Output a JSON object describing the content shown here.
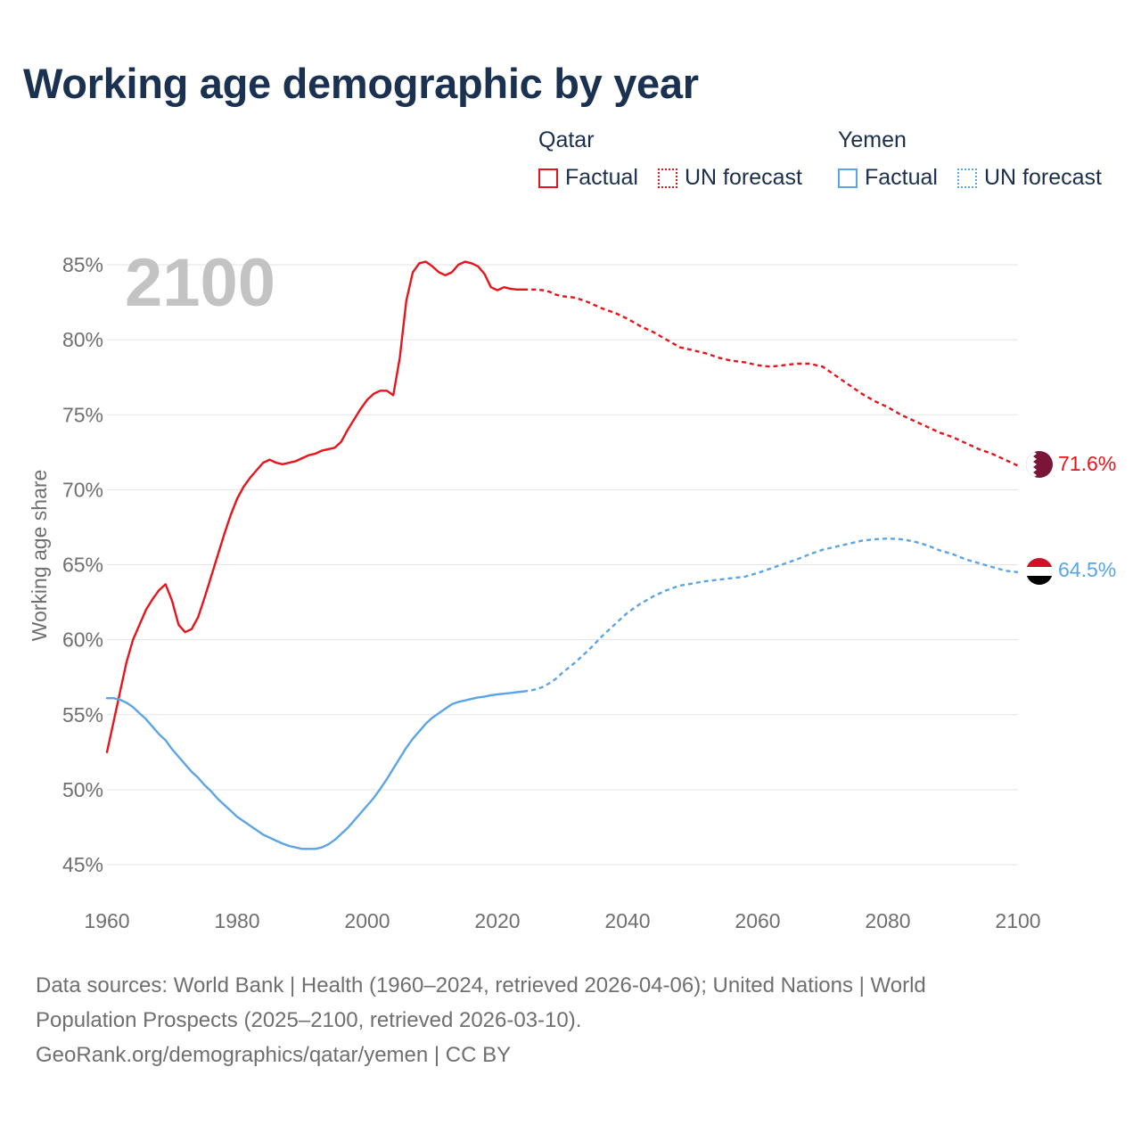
{
  "title": "Working age demographic by year",
  "legend": {
    "groups": [
      {
        "country": "Qatar",
        "factual_label": "Factual",
        "forecast_label": "UN forecast",
        "color": "#e8141b"
      },
      {
        "country": "Yemen",
        "factual_label": "Factual",
        "forecast_label": "UN forecast",
        "color": "#5ba4e6"
      }
    ]
  },
  "footer": {
    "line1": "Data sources: World Bank | Health (1960–2024, retrieved 2026-04-06); United Nations | World",
    "line2": "Population Prospects (2025–2100, retrieved 2026-03-10).",
    "line3": "GeoRank.org/demographics/qatar/yemen | CC BY"
  },
  "chart_data": {
    "type": "line",
    "title": "Working age demographic by year",
    "ylabel": "Working age share",
    "xlabel": "",
    "year_watermark": "2100",
    "xlim": [
      1960,
      2100
    ],
    "ylim": [
      45,
      85
    ],
    "x_ticks": [
      "1960",
      "1980",
      "2000",
      "2020",
      "2040",
      "2060",
      "2080",
      "2100"
    ],
    "y_ticks": [
      "85%",
      "80%",
      "75%",
      "70%",
      "65%",
      "60%",
      "55%",
      "50%",
      "45%"
    ],
    "y_tick_values": [
      85,
      80,
      75,
      70,
      65,
      60,
      55,
      50,
      45
    ],
    "grid": true,
    "forecast_start_year": 2024,
    "series": [
      {
        "name": "Qatar",
        "color": "#e8141b",
        "flag_icon": "qatar-flag-icon",
        "end_label": "71.6%",
        "points": [
          [
            1960,
            52.5
          ],
          [
            1961,
            54.5
          ],
          [
            1962,
            56.5
          ],
          [
            1963,
            58.5
          ],
          [
            1964,
            60.0
          ],
          [
            1965,
            61.0
          ],
          [
            1966,
            62.0
          ],
          [
            1967,
            62.7
          ],
          [
            1968,
            63.3
          ],
          [
            1969,
            63.7
          ],
          [
            1970,
            62.6
          ],
          [
            1971,
            61.0
          ],
          [
            1972,
            60.5
          ],
          [
            1973,
            60.7
          ],
          [
            1974,
            61.5
          ],
          [
            1975,
            62.8
          ],
          [
            1976,
            64.2
          ],
          [
            1977,
            65.6
          ],
          [
            1978,
            67.0
          ],
          [
            1979,
            68.3
          ],
          [
            1980,
            69.4
          ],
          [
            1981,
            70.2
          ],
          [
            1982,
            70.8
          ],
          [
            1983,
            71.3
          ],
          [
            1984,
            71.8
          ],
          [
            1985,
            72.0
          ],
          [
            1986,
            71.8
          ],
          [
            1987,
            71.7
          ],
          [
            1988,
            71.8
          ],
          [
            1989,
            71.9
          ],
          [
            1990,
            72.1
          ],
          [
            1991,
            72.3
          ],
          [
            1992,
            72.4
          ],
          [
            1993,
            72.6
          ],
          [
            1994,
            72.7
          ],
          [
            1995,
            72.8
          ],
          [
            1996,
            73.2
          ],
          [
            1997,
            74.0
          ],
          [
            1998,
            74.7
          ],
          [
            1999,
            75.4
          ],
          [
            2000,
            76.0
          ],
          [
            2001,
            76.4
          ],
          [
            2002,
            76.6
          ],
          [
            2003,
            76.6
          ],
          [
            2004,
            76.3
          ],
          [
            2005,
            78.8
          ],
          [
            2006,
            82.6
          ],
          [
            2007,
            84.5
          ],
          [
            2008,
            85.1
          ],
          [
            2009,
            85.2
          ],
          [
            2010,
            84.9
          ],
          [
            2011,
            84.5
          ],
          [
            2012,
            84.3
          ],
          [
            2013,
            84.5
          ],
          [
            2014,
            85.0
          ],
          [
            2015,
            85.2
          ],
          [
            2016,
            85.1
          ],
          [
            2017,
            84.9
          ],
          [
            2018,
            84.4
          ],
          [
            2019,
            83.5
          ],
          [
            2020,
            83.3
          ],
          [
            2021,
            83.5
          ],
          [
            2022,
            83.4
          ],
          [
            2023,
            83.35
          ],
          [
            2024,
            83.35
          ],
          [
            2025,
            83.35
          ],
          [
            2026,
            83.35
          ],
          [
            2027,
            83.3
          ],
          [
            2028,
            83.2
          ],
          [
            2029,
            83.0
          ],
          [
            2030,
            82.9
          ],
          [
            2032,
            82.8
          ],
          [
            2034,
            82.5
          ],
          [
            2036,
            82.1
          ],
          [
            2038,
            81.8
          ],
          [
            2040,
            81.4
          ],
          [
            2042,
            80.9
          ],
          [
            2044,
            80.5
          ],
          [
            2046,
            80.0
          ],
          [
            2048,
            79.5
          ],
          [
            2050,
            79.3
          ],
          [
            2052,
            79.1
          ],
          [
            2054,
            78.8
          ],
          [
            2056,
            78.6
          ],
          [
            2058,
            78.5
          ],
          [
            2060,
            78.3
          ],
          [
            2062,
            78.2
          ],
          [
            2064,
            78.3
          ],
          [
            2066,
            78.4
          ],
          [
            2068,
            78.4
          ],
          [
            2070,
            78.2
          ],
          [
            2072,
            77.6
          ],
          [
            2074,
            77.0
          ],
          [
            2076,
            76.4
          ],
          [
            2078,
            75.9
          ],
          [
            2080,
            75.5
          ],
          [
            2082,
            75.0
          ],
          [
            2084,
            74.6
          ],
          [
            2086,
            74.2
          ],
          [
            2088,
            73.8
          ],
          [
            2090,
            73.5
          ],
          [
            2092,
            73.1
          ],
          [
            2094,
            72.7
          ],
          [
            2096,
            72.4
          ],
          [
            2098,
            72.0
          ],
          [
            2100,
            71.6
          ]
        ]
      },
      {
        "name": "Yemen",
        "color": "#5ba4e6",
        "flag_icon": "yemen-flag-icon",
        "end_label": "64.5%",
        "points": [
          [
            1960,
            56.1
          ],
          [
            1961,
            56.1
          ],
          [
            1962,
            56.0
          ],
          [
            1963,
            55.8
          ],
          [
            1964,
            55.5
          ],
          [
            1965,
            55.1
          ],
          [
            1966,
            54.7
          ],
          [
            1967,
            54.2
          ],
          [
            1968,
            53.7
          ],
          [
            1969,
            53.3
          ],
          [
            1970,
            52.7
          ],
          [
            1971,
            52.2
          ],
          [
            1972,
            51.7
          ],
          [
            1973,
            51.2
          ],
          [
            1974,
            50.8
          ],
          [
            1975,
            50.3
          ],
          [
            1976,
            49.9
          ],
          [
            1977,
            49.4
          ],
          [
            1978,
            49.0
          ],
          [
            1979,
            48.6
          ],
          [
            1980,
            48.2
          ],
          [
            1981,
            47.9
          ],
          [
            1982,
            47.6
          ],
          [
            1983,
            47.3
          ],
          [
            1984,
            47.0
          ],
          [
            1985,
            46.8
          ],
          [
            1986,
            46.6
          ],
          [
            1987,
            46.4
          ],
          [
            1988,
            46.25
          ],
          [
            1989,
            46.15
          ],
          [
            1990,
            46.05
          ],
          [
            1991,
            46.05
          ],
          [
            1992,
            46.05
          ],
          [
            1993,
            46.15
          ],
          [
            1994,
            46.35
          ],
          [
            1995,
            46.65
          ],
          [
            1996,
            47.05
          ],
          [
            1997,
            47.45
          ],
          [
            1998,
            47.95
          ],
          [
            1999,
            48.45
          ],
          [
            2000,
            48.95
          ],
          [
            2001,
            49.45
          ],
          [
            2002,
            50.05
          ],
          [
            2003,
            50.7
          ],
          [
            2004,
            51.4
          ],
          [
            2005,
            52.1
          ],
          [
            2006,
            52.8
          ],
          [
            2007,
            53.4
          ],
          [
            2008,
            53.9
          ],
          [
            2009,
            54.4
          ],
          [
            2010,
            54.8
          ],
          [
            2011,
            55.1
          ],
          [
            2012,
            55.4
          ],
          [
            2013,
            55.7
          ],
          [
            2014,
            55.85
          ],
          [
            2015,
            55.95
          ],
          [
            2016,
            56.05
          ],
          [
            2017,
            56.15
          ],
          [
            2018,
            56.2
          ],
          [
            2019,
            56.3
          ],
          [
            2020,
            56.35
          ],
          [
            2021,
            56.4
          ],
          [
            2022,
            56.45
          ],
          [
            2023,
            56.5
          ],
          [
            2024,
            56.55
          ],
          [
            2025,
            56.6
          ],
          [
            2026,
            56.7
          ],
          [
            2027,
            56.85
          ],
          [
            2028,
            57.1
          ],
          [
            2029,
            57.4
          ],
          [
            2030,
            57.8
          ],
          [
            2032,
            58.5
          ],
          [
            2034,
            59.3
          ],
          [
            2036,
            60.2
          ],
          [
            2038,
            61.0
          ],
          [
            2040,
            61.8
          ],
          [
            2042,
            62.4
          ],
          [
            2044,
            62.9
          ],
          [
            2046,
            63.3
          ],
          [
            2048,
            63.6
          ],
          [
            2050,
            63.75
          ],
          [
            2052,
            63.9
          ],
          [
            2054,
            64.0
          ],
          [
            2056,
            64.1
          ],
          [
            2058,
            64.2
          ],
          [
            2060,
            64.45
          ],
          [
            2062,
            64.75
          ],
          [
            2064,
            65.05
          ],
          [
            2066,
            65.35
          ],
          [
            2068,
            65.7
          ],
          [
            2070,
            66.0
          ],
          [
            2072,
            66.2
          ],
          [
            2074,
            66.4
          ],
          [
            2076,
            66.6
          ],
          [
            2078,
            66.7
          ],
          [
            2080,
            66.75
          ],
          [
            2082,
            66.7
          ],
          [
            2084,
            66.55
          ],
          [
            2086,
            66.3
          ],
          [
            2088,
            65.95
          ],
          [
            2090,
            65.7
          ],
          [
            2092,
            65.35
          ],
          [
            2094,
            65.1
          ],
          [
            2096,
            64.85
          ],
          [
            2098,
            64.6
          ],
          [
            2100,
            64.5
          ]
        ]
      }
    ]
  }
}
